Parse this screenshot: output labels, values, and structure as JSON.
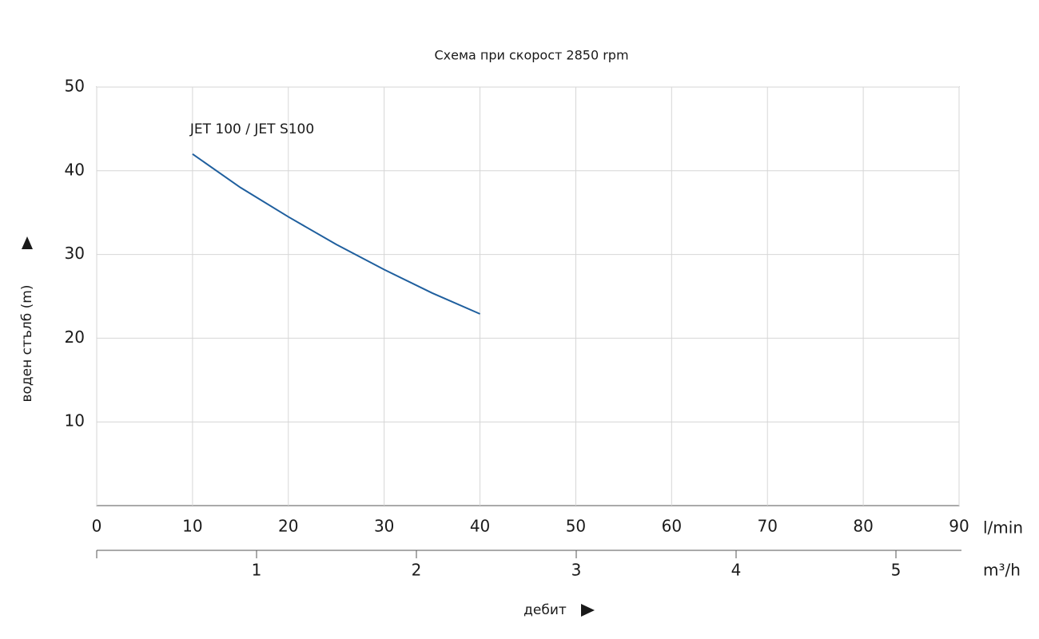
{
  "chart_data": {
    "type": "line",
    "title": "Схема при скорост 2850 rpm",
    "x_label": "дебит",
    "y_label": "воден стълб (m)",
    "x_unit": "l/min",
    "x2_unit": "m³/h",
    "x": [
      10,
      15,
      20,
      25,
      30,
      35,
      40
    ],
    "series": [
      {
        "name": "JET 100 / JET S100",
        "color": "#1f5f9e",
        "values": [
          42,
          38,
          34.5,
          31.2,
          28.2,
          25.4,
          22.9
        ]
      }
    ],
    "xlim": [
      0,
      90
    ],
    "xticks": [
      0,
      10,
      20,
      30,
      40,
      50,
      60,
      70,
      80,
      90
    ],
    "ylim": [
      0,
      50
    ],
    "yticks": [
      10,
      20,
      30,
      40,
      50
    ],
    "x2lim": [
      0,
      5.395
    ],
    "x2ticks": [
      1,
      2,
      3,
      4,
      5
    ],
    "grid": true
  }
}
